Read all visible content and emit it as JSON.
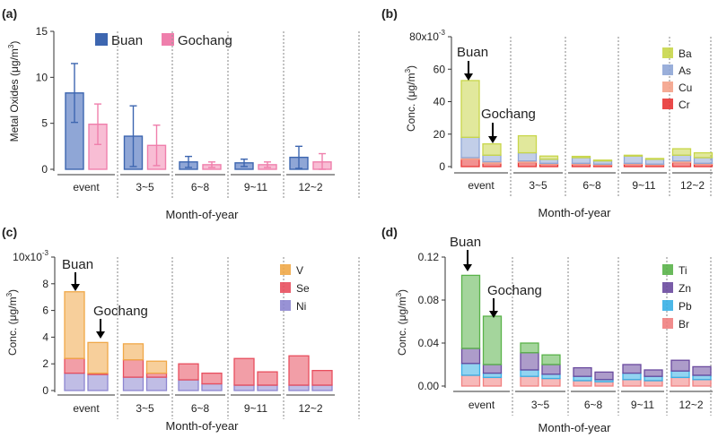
{
  "colors": {
    "buan": "#3d66b0",
    "buan_fill": "#8fa6d6",
    "gochang": "#ef7fac",
    "gochang_fill": "#f8bdd4",
    "Ba": "#c8d64a",
    "As": "#8fa6d6",
    "Cu": "#f4a28a",
    "Cr": "#e83636",
    "V": "#f0a848",
    "Se": "#e84f5e",
    "Ni": "#8d86d0",
    "Ti": "#5ab34a",
    "Zn": "#6a4a9e",
    "Pb": "#38b0e6",
    "Br": "#f08080"
  },
  "chart_data": [
    {
      "panel": "(a)",
      "type": "bar",
      "categories": [
        "event",
        "3~5",
        "6~8",
        "9~11",
        "12~2"
      ],
      "ylabel_main": "Metal Oxides (μg/m",
      "ylabel_sup": "3",
      "ylabel_end": ")",
      "xlabel": "Month-of-year",
      "ylim": [
        0,
        15
      ],
      "yticks": [
        "0",
        "5",
        "10",
        "15"
      ],
      "series": [
        {
          "name": "Buan",
          "values": [
            8.3,
            3.6,
            0.8,
            0.7,
            1.3
          ],
          "err": [
            3.2,
            3.3,
            0.6,
            0.4,
            1.2
          ]
        },
        {
          "name": "Gochang",
          "values": [
            4.9,
            2.6,
            0.5,
            0.5,
            0.8
          ],
          "err": [
            2.2,
            2.2,
            0.3,
            0.3,
            0.9
          ]
        }
      ]
    },
    {
      "panel": "(b)",
      "type": "stacked-bar",
      "categories": [
        "event",
        "3~5",
        "6~8",
        "9~11",
        "12~2"
      ],
      "ylabel_main": "Conc. (μg/m",
      "ylabel_sup": "3",
      "ylabel_end": ")",
      "xlabel": "Month-of-year",
      "ylim": [
        0,
        80
      ],
      "yticks": [
        "0",
        "20",
        "40",
        "60",
        "80x10"
      ],
      "scale_sup": "-3",
      "components": [
        "Cr",
        "Cu",
        "As",
        "Ba"
      ],
      "legend": [
        "Ba",
        "As",
        "Cu",
        "Cr"
      ],
      "buan": [
        [
          4.5,
          1.0,
          12.5,
          35
        ],
        [
          2.5,
          1.0,
          5.0,
          10.5
        ],
        [
          1.5,
          0.5,
          3.5,
          0.8
        ],
        [
          1.5,
          0.5,
          4.5,
          0.5
        ],
        [
          2.5,
          1.0,
          3.5,
          4
        ]
      ],
      "gochang": [
        [
          2.0,
          1.0,
          4.0,
          7
        ],
        [
          1.5,
          0.5,
          2.5,
          2
        ],
        [
          1.0,
          0.5,
          2.0,
          0.5
        ],
        [
          1.0,
          0.5,
          3.0,
          0.5
        ],
        [
          1.5,
          0.5,
          3.5,
          3
        ]
      ],
      "annot_buan": "Buan",
      "annot_gochang": "Gochang"
    },
    {
      "panel": "(c)",
      "type": "stacked-bar",
      "categories": [
        "event",
        "3~5",
        "6~8",
        "9~11",
        "12~2"
      ],
      "ylabel_main": "Conc. (μg/m",
      "ylabel_sup": "3",
      "ylabel_end": ")",
      "xlabel": "Month-of-year",
      "ylim": [
        0,
        10
      ],
      "yticks": [
        "0",
        "2",
        "4",
        "6",
        "8",
        "10x10"
      ],
      "scale_sup": "-3",
      "components": [
        "Ni",
        "Se",
        "V"
      ],
      "legend": [
        "V",
        "Se",
        "Ni"
      ],
      "buan": [
        [
          1.3,
          1.1,
          5.0
        ],
        [
          1.0,
          1.3,
          1.2
        ],
        [
          0.8,
          1.2,
          0.0
        ],
        [
          0.4,
          2.0,
          0.0
        ],
        [
          0.4,
          2.2,
          0.0
        ]
      ],
      "gochang": [
        [
          1.2,
          0.1,
          2.3
        ],
        [
          1.0,
          0.3,
          0.9
        ],
        [
          0.5,
          0.8,
          0.0
        ],
        [
          0.4,
          1.0,
          0.0
        ],
        [
          0.4,
          1.1,
          0.0
        ]
      ],
      "annot_buan": "Buan",
      "annot_gochang": "Gochang"
    },
    {
      "panel": "(d)",
      "type": "stacked-bar",
      "categories": [
        "event",
        "3~5",
        "6~8",
        "9~11",
        "12~2"
      ],
      "ylabel_main": "Conc. (μg/m",
      "ylabel_sup": "3",
      "ylabel_end": ")",
      "xlabel": "Month-of-year",
      "ylim": [
        0,
        0.12
      ],
      "yticks": [
        "0.00",
        "0.04",
        "0.08",
        "0.12"
      ],
      "scale_sup": "",
      "components": [
        "Br",
        "Pb",
        "Zn",
        "Ti"
      ],
      "legend": [
        "Ti",
        "Zn",
        "Pb",
        "Br"
      ],
      "buan": [
        [
          0.01,
          0.011,
          0.014,
          0.068
        ],
        [
          0.009,
          0.006,
          0.016,
          0.009
        ],
        [
          0.005,
          0.004,
          0.008,
          0.0
        ],
        [
          0.006,
          0.006,
          0.008,
          0.0
        ],
        [
          0.008,
          0.006,
          0.01,
          0.0
        ]
      ],
      "gochang": [
        [
          0.008,
          0.004,
          0.008,
          0.045
        ],
        [
          0.007,
          0.004,
          0.009,
          0.009
        ],
        [
          0.004,
          0.002,
          0.007,
          0.0
        ],
        [
          0.005,
          0.004,
          0.006,
          0.0
        ],
        [
          0.006,
          0.004,
          0.008,
          0.0
        ]
      ],
      "annot_buan": "Buan",
      "annot_gochang": "Gochang"
    }
  ]
}
